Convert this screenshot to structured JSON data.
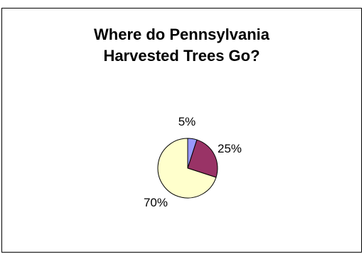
{
  "chart_data": {
    "type": "pie",
    "title_lines": [
      "Where do Pennsylvania",
      "Harvested Trees Go?"
    ],
    "slices": [
      {
        "value": 5,
        "label": "5%",
        "color": "#9999FF"
      },
      {
        "value": 25,
        "label": "25%",
        "color": "#993366"
      },
      {
        "value": 70,
        "label": "70%",
        "color": "#FFFFCC"
      }
    ],
    "start": "12 o'clock",
    "direction": "clockwise",
    "legend": "none"
  }
}
